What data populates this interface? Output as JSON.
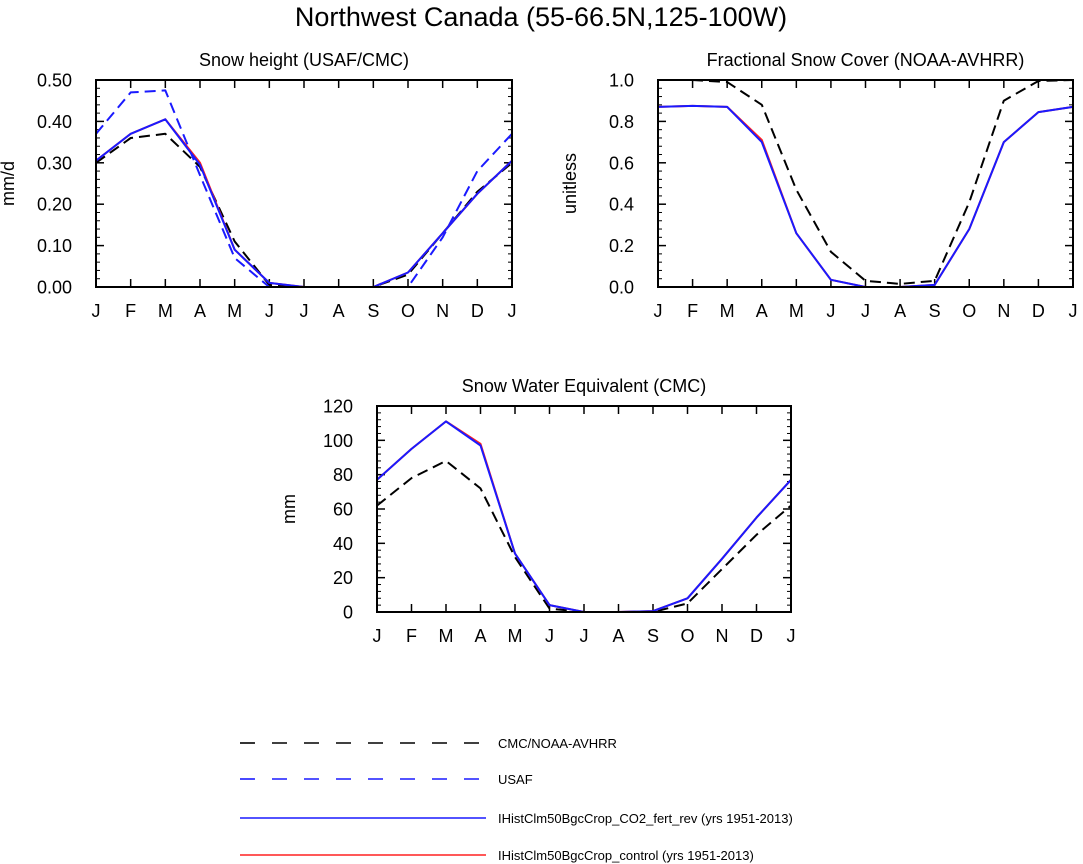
{
  "figure": {
    "title": "Northwest Canada (55-66.5N,125-100W)"
  },
  "legend": {
    "entries": [
      {
        "label": "CMC/NOAA-AVHRR",
        "color": "#000000",
        "dash": "dashed"
      },
      {
        "label": "USAF",
        "color": "#1a1aff",
        "dash": "dashed"
      },
      {
        "label": "IHistClm50BgcCrop_CO2_fert_rev (yrs 1951-2013)",
        "color": "#1a1aff",
        "dash": "solid"
      },
      {
        "label": "IHistClm50BgcCrop_control (yrs 1951-2013)",
        "color": "#ff2020",
        "dash": "solid"
      }
    ]
  },
  "chart_data": [
    {
      "type": "line",
      "title": "Snow height (USAF/CMC)",
      "xlabel": "",
      "ylabel": "mm/d",
      "categories": [
        "J",
        "F",
        "M",
        "A",
        "M",
        "J",
        "J",
        "A",
        "S",
        "O",
        "N",
        "D",
        "J"
      ],
      "ylim": [
        0,
        0.5
      ],
      "yticks": [
        "0.00",
        "0.10",
        "0.20",
        "0.30",
        "0.40",
        "0.50"
      ],
      "series": [
        {
          "name": "CMC/NOAA-AVHRR",
          "values": [
            0.3,
            0.36,
            0.37,
            0.29,
            0.11,
            0.005,
            0.0,
            0.0,
            0.0,
            0.03,
            0.13,
            0.23,
            0.3
          ]
        },
        {
          "name": "USAF",
          "values": [
            0.37,
            0.47,
            0.475,
            0.27,
            0.07,
            0.0,
            0.0,
            0.0,
            0.0,
            0.0,
            0.12,
            0.28,
            0.37
          ]
        },
        {
          "name": "IHistClm50BgcCrop_CO2_fert_rev (yrs 1951-2013)",
          "values": [
            0.305,
            0.37,
            0.405,
            0.295,
            0.09,
            0.01,
            0.0,
            0.0,
            0.0,
            0.035,
            0.13,
            0.225,
            0.305
          ]
        },
        {
          "name": "IHistClm50BgcCrop_control (yrs 1951-2013)",
          "values": [
            0.305,
            0.37,
            0.405,
            0.3,
            0.09,
            0.01,
            0.0,
            0.0,
            0.0,
            0.035,
            0.13,
            0.225,
            0.305
          ]
        }
      ]
    },
    {
      "type": "line",
      "title": "Fractional Snow Cover (NOAA-AVHRR)",
      "xlabel": "",
      "ylabel": "unitless",
      "categories": [
        "J",
        "F",
        "M",
        "A",
        "M",
        "J",
        "J",
        "A",
        "S",
        "O",
        "N",
        "D",
        "J"
      ],
      "ylim": [
        0,
        1.0
      ],
      "yticks": [
        "0.0",
        "0.2",
        "0.4",
        "0.6",
        "0.8",
        "1.0"
      ],
      "series": [
        {
          "name": "CMC/NOAA-AVHRR",
          "values": [
            1.0,
            1.0,
            0.99,
            0.88,
            0.47,
            0.17,
            0.03,
            0.015,
            0.03,
            0.41,
            0.9,
            0.995,
            1.0
          ]
        },
        {
          "name": "IHistClm50BgcCrop_CO2_fert_rev (yrs 1951-2013)",
          "values": [
            0.87,
            0.875,
            0.87,
            0.7,
            0.26,
            0.035,
            0.0,
            0.0,
            0.01,
            0.28,
            0.7,
            0.845,
            0.87
          ]
        },
        {
          "name": "IHistClm50BgcCrop_control (yrs 1951-2013)",
          "values": [
            0.87,
            0.875,
            0.87,
            0.71,
            0.26,
            0.035,
            0.0,
            0.0,
            0.01,
            0.28,
            0.7,
            0.845,
            0.87
          ]
        }
      ]
    },
    {
      "type": "line",
      "title": "Snow Water Equivalent (CMC)",
      "xlabel": "",
      "ylabel": "mm",
      "categories": [
        "J",
        "F",
        "M",
        "A",
        "M",
        "J",
        "J",
        "A",
        "S",
        "O",
        "N",
        "D",
        "J"
      ],
      "ylim": [
        0,
        120
      ],
      "yticks": [
        "0",
        "20",
        "40",
        "60",
        "80",
        "100",
        "120"
      ],
      "series": [
        {
          "name": "CMC/NOAA-AVHRR",
          "values": [
            62,
            78,
            88,
            72,
            32,
            2,
            0,
            0,
            0,
            5,
            25,
            45,
            62
          ]
        },
        {
          "name": "IHistClm50BgcCrop_CO2_fert_rev (yrs 1951-2013)",
          "values": [
            77,
            95,
            111,
            97,
            34,
            4,
            0,
            0,
            0.5,
            8,
            31,
            55,
            77
          ]
        },
        {
          "name": "IHistClm50BgcCrop_control (yrs 1951-2013)",
          "values": [
            77,
            95,
            111,
            98,
            34,
            4,
            0,
            0,
            0.5,
            8,
            31,
            55,
            77
          ]
        }
      ]
    }
  ]
}
